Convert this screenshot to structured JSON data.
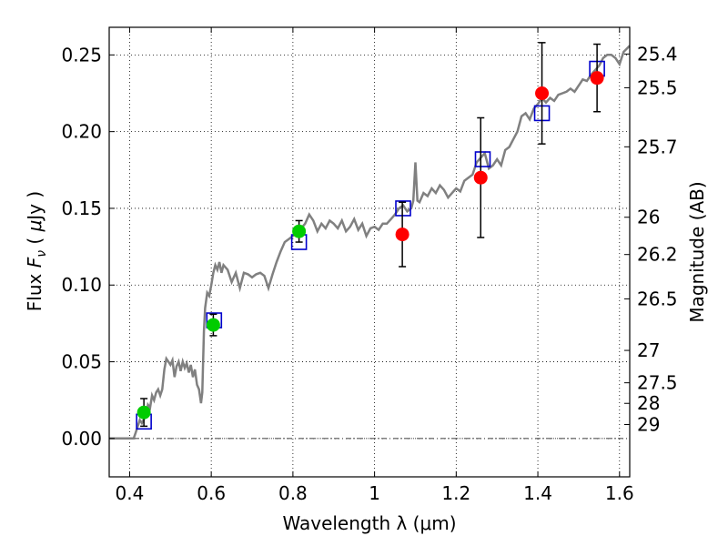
{
  "chart_data": {
    "type": "scatter",
    "title": "",
    "xlabel": "Wavelength  λ (μm)",
    "ylabel": {
      "prefix": "Flux  ",
      "symbol": "F",
      "subscript": "ν",
      "open": "  ( ",
      "mu": "μ",
      "unit": "Jy )"
    },
    "ylabel_right": "Magnitude (AB)",
    "xlim": [
      0.35,
      1.625
    ],
    "ylim": [
      -0.025,
      0.268
    ],
    "x_ticks": [
      {
        "value": 0.4,
        "label": "0.4"
      },
      {
        "value": 0.6,
        "label": "0.6"
      },
      {
        "value": 0.8,
        "label": "0.8"
      },
      {
        "value": 1.0,
        "label": "1"
      },
      {
        "value": 1.2,
        "label": "1.2"
      },
      {
        "value": 1.4,
        "label": "1.4"
      },
      {
        "value": 1.6,
        "label": "1.6"
      }
    ],
    "y_ticks": [
      {
        "value": 0.0,
        "label": "0.00"
      },
      {
        "value": 0.05,
        "label": "0.05"
      },
      {
        "value": 0.1,
        "label": "0.10"
      },
      {
        "value": 0.15,
        "label": "0.15"
      },
      {
        "value": 0.2,
        "label": "0.20"
      },
      {
        "value": 0.25,
        "label": "0.25"
      }
    ],
    "right_ticks": [
      {
        "label": "25.4",
        "flux": 0.2506
      },
      {
        "label": "25.5",
        "flux": 0.2286
      },
      {
        "label": "25.7",
        "flux": 0.1901
      },
      {
        "label": "26",
        "flux": 0.1442
      },
      {
        "label": "26.2",
        "flux": 0.1199
      },
      {
        "label": "26.5",
        "flux": 0.091
      },
      {
        "label": "27",
        "flux": 0.0574
      },
      {
        "label": "27.5",
        "flux": 0.0363
      },
      {
        "label": "28",
        "flux": 0.0229
      },
      {
        "label": "29",
        "flux": 0.0091
      }
    ],
    "grid": true,
    "model_sed": [
      [
        0.35,
        0.0
      ],
      [
        0.41,
        0.0
      ],
      [
        0.415,
        0.004
      ],
      [
        0.425,
        0.012
      ],
      [
        0.43,
        0.01
      ],
      [
        0.44,
        0.015
      ],
      [
        0.445,
        0.022
      ],
      [
        0.45,
        0.02
      ],
      [
        0.455,
        0.028
      ],
      [
        0.46,
        0.025
      ],
      [
        0.465,
        0.03
      ],
      [
        0.47,
        0.032
      ],
      [
        0.475,
        0.028
      ],
      [
        0.48,
        0.032
      ],
      [
        0.485,
        0.045
      ],
      [
        0.49,
        0.052
      ],
      [
        0.495,
        0.05
      ],
      [
        0.5,
        0.048
      ],
      [
        0.505,
        0.051
      ],
      [
        0.51,
        0.04
      ],
      [
        0.515,
        0.047
      ],
      [
        0.52,
        0.05
      ],
      [
        0.525,
        0.044
      ],
      [
        0.53,
        0.05
      ],
      [
        0.535,
        0.046
      ],
      [
        0.54,
        0.049
      ],
      [
        0.545,
        0.043
      ],
      [
        0.55,
        0.048
      ],
      [
        0.555,
        0.04
      ],
      [
        0.56,
        0.045
      ],
      [
        0.565,
        0.035
      ],
      [
        0.57,
        0.032
      ],
      [
        0.575,
        0.023
      ],
      [
        0.578,
        0.03
      ],
      [
        0.582,
        0.07
      ],
      [
        0.585,
        0.085
      ],
      [
        0.59,
        0.095
      ],
      [
        0.595,
        0.093
      ],
      [
        0.6,
        0.1
      ],
      [
        0.605,
        0.108
      ],
      [
        0.61,
        0.113
      ],
      [
        0.615,
        0.11
      ],
      [
        0.62,
        0.115
      ],
      [
        0.625,
        0.108
      ],
      [
        0.63,
        0.113
      ],
      [
        0.64,
        0.11
      ],
      [
        0.65,
        0.102
      ],
      [
        0.66,
        0.108
      ],
      [
        0.67,
        0.098
      ],
      [
        0.68,
        0.108
      ],
      [
        0.69,
        0.107
      ],
      [
        0.7,
        0.105
      ],
      [
        0.71,
        0.107
      ],
      [
        0.72,
        0.108
      ],
      [
        0.73,
        0.106
      ],
      [
        0.74,
        0.098
      ],
      [
        0.75,
        0.107
      ],
      [
        0.76,
        0.115
      ],
      [
        0.77,
        0.122
      ],
      [
        0.78,
        0.128
      ],
      [
        0.79,
        0.13
      ],
      [
        0.8,
        0.132
      ],
      [
        0.81,
        0.134
      ],
      [
        0.82,
        0.137
      ],
      [
        0.83,
        0.14
      ],
      [
        0.84,
        0.146
      ],
      [
        0.85,
        0.142
      ],
      [
        0.86,
        0.135
      ],
      [
        0.87,
        0.14
      ],
      [
        0.88,
        0.137
      ],
      [
        0.89,
        0.142
      ],
      [
        0.9,
        0.14
      ],
      [
        0.91,
        0.137
      ],
      [
        0.92,
        0.142
      ],
      [
        0.93,
        0.135
      ],
      [
        0.94,
        0.138
      ],
      [
        0.95,
        0.143
      ],
      [
        0.96,
        0.136
      ],
      [
        0.97,
        0.14
      ],
      [
        0.98,
        0.132
      ],
      [
        0.99,
        0.137
      ],
      [
        1.0,
        0.138
      ],
      [
        1.01,
        0.136
      ],
      [
        1.02,
        0.14
      ],
      [
        1.03,
        0.14
      ],
      [
        1.04,
        0.143
      ],
      [
        1.05,
        0.146
      ],
      [
        1.06,
        0.15
      ],
      [
        1.07,
        0.152
      ],
      [
        1.08,
        0.148
      ],
      [
        1.09,
        0.15
      ],
      [
        1.095,
        0.155
      ],
      [
        1.1,
        0.18
      ],
      [
        1.105,
        0.155
      ],
      [
        1.11,
        0.154
      ],
      [
        1.12,
        0.16
      ],
      [
        1.13,
        0.158
      ],
      [
        1.14,
        0.163
      ],
      [
        1.15,
        0.16
      ],
      [
        1.16,
        0.165
      ],
      [
        1.17,
        0.162
      ],
      [
        1.18,
        0.157
      ],
      [
        1.19,
        0.16
      ],
      [
        1.2,
        0.163
      ],
      [
        1.21,
        0.161
      ],
      [
        1.22,
        0.168
      ],
      [
        1.23,
        0.17
      ],
      [
        1.24,
        0.172
      ],
      [
        1.25,
        0.18
      ],
      [
        1.26,
        0.183
      ],
      [
        1.27,
        0.186
      ],
      [
        1.28,
        0.176
      ],
      [
        1.29,
        0.178
      ],
      [
        1.3,
        0.182
      ],
      [
        1.31,
        0.178
      ],
      [
        1.32,
        0.188
      ],
      [
        1.33,
        0.19
      ],
      [
        1.34,
        0.195
      ],
      [
        1.35,
        0.2
      ],
      [
        1.36,
        0.21
      ],
      [
        1.37,
        0.212
      ],
      [
        1.38,
        0.208
      ],
      [
        1.39,
        0.215
      ],
      [
        1.4,
        0.218
      ],
      [
        1.41,
        0.222
      ],
      [
        1.42,
        0.219
      ],
      [
        1.43,
        0.222
      ],
      [
        1.44,
        0.22
      ],
      [
        1.45,
        0.224
      ],
      [
        1.46,
        0.225
      ],
      [
        1.47,
        0.226
      ],
      [
        1.48,
        0.228
      ],
      [
        1.49,
        0.226
      ],
      [
        1.5,
        0.23
      ],
      [
        1.51,
        0.234
      ],
      [
        1.52,
        0.233
      ],
      [
        1.53,
        0.237
      ],
      [
        1.54,
        0.24
      ],
      [
        1.55,
        0.243
      ],
      [
        1.56,
        0.248
      ],
      [
        1.57,
        0.25
      ],
      [
        1.58,
        0.25
      ],
      [
        1.59,
        0.248
      ],
      [
        1.6,
        0.244
      ],
      [
        1.61,
        0.252
      ],
      [
        1.625,
        0.256
      ]
    ],
    "model_bands": [
      {
        "x": 0.435,
        "y": 0.011
      },
      {
        "x": 0.607,
        "y": 0.077
      },
      {
        "x": 0.815,
        "y": 0.128
      },
      {
        "x": 1.07,
        "y": 0.15
      },
      {
        "x": 1.265,
        "y": 0.182
      },
      {
        "x": 1.41,
        "y": 0.212
      },
      {
        "x": 1.545,
        "y": 0.241
      }
    ],
    "observations": [
      {
        "x": 0.435,
        "y": 0.017,
        "err": 0.009,
        "color": "#00cc00"
      },
      {
        "x": 0.605,
        "y": 0.074,
        "err": 0.007,
        "color": "#00cc00"
      },
      {
        "x": 0.815,
        "y": 0.135,
        "err": 0.007,
        "color": "#00cc00"
      },
      {
        "x": 1.068,
        "y": 0.133,
        "err": 0.021,
        "color": "#ff0000"
      },
      {
        "x": 1.26,
        "y": 0.17,
        "err": 0.039,
        "color": "#ff0000"
      },
      {
        "x": 1.41,
        "y": 0.225,
        "err": 0.033,
        "color": "#ff0000"
      },
      {
        "x": 1.545,
        "y": 0.235,
        "err": 0.022,
        "color": "#ff0000"
      }
    ],
    "colors": {
      "model_line": "#808080",
      "band_box": "#0000cc",
      "error_bar": "#000000",
      "zero_line": "#000000"
    }
  }
}
